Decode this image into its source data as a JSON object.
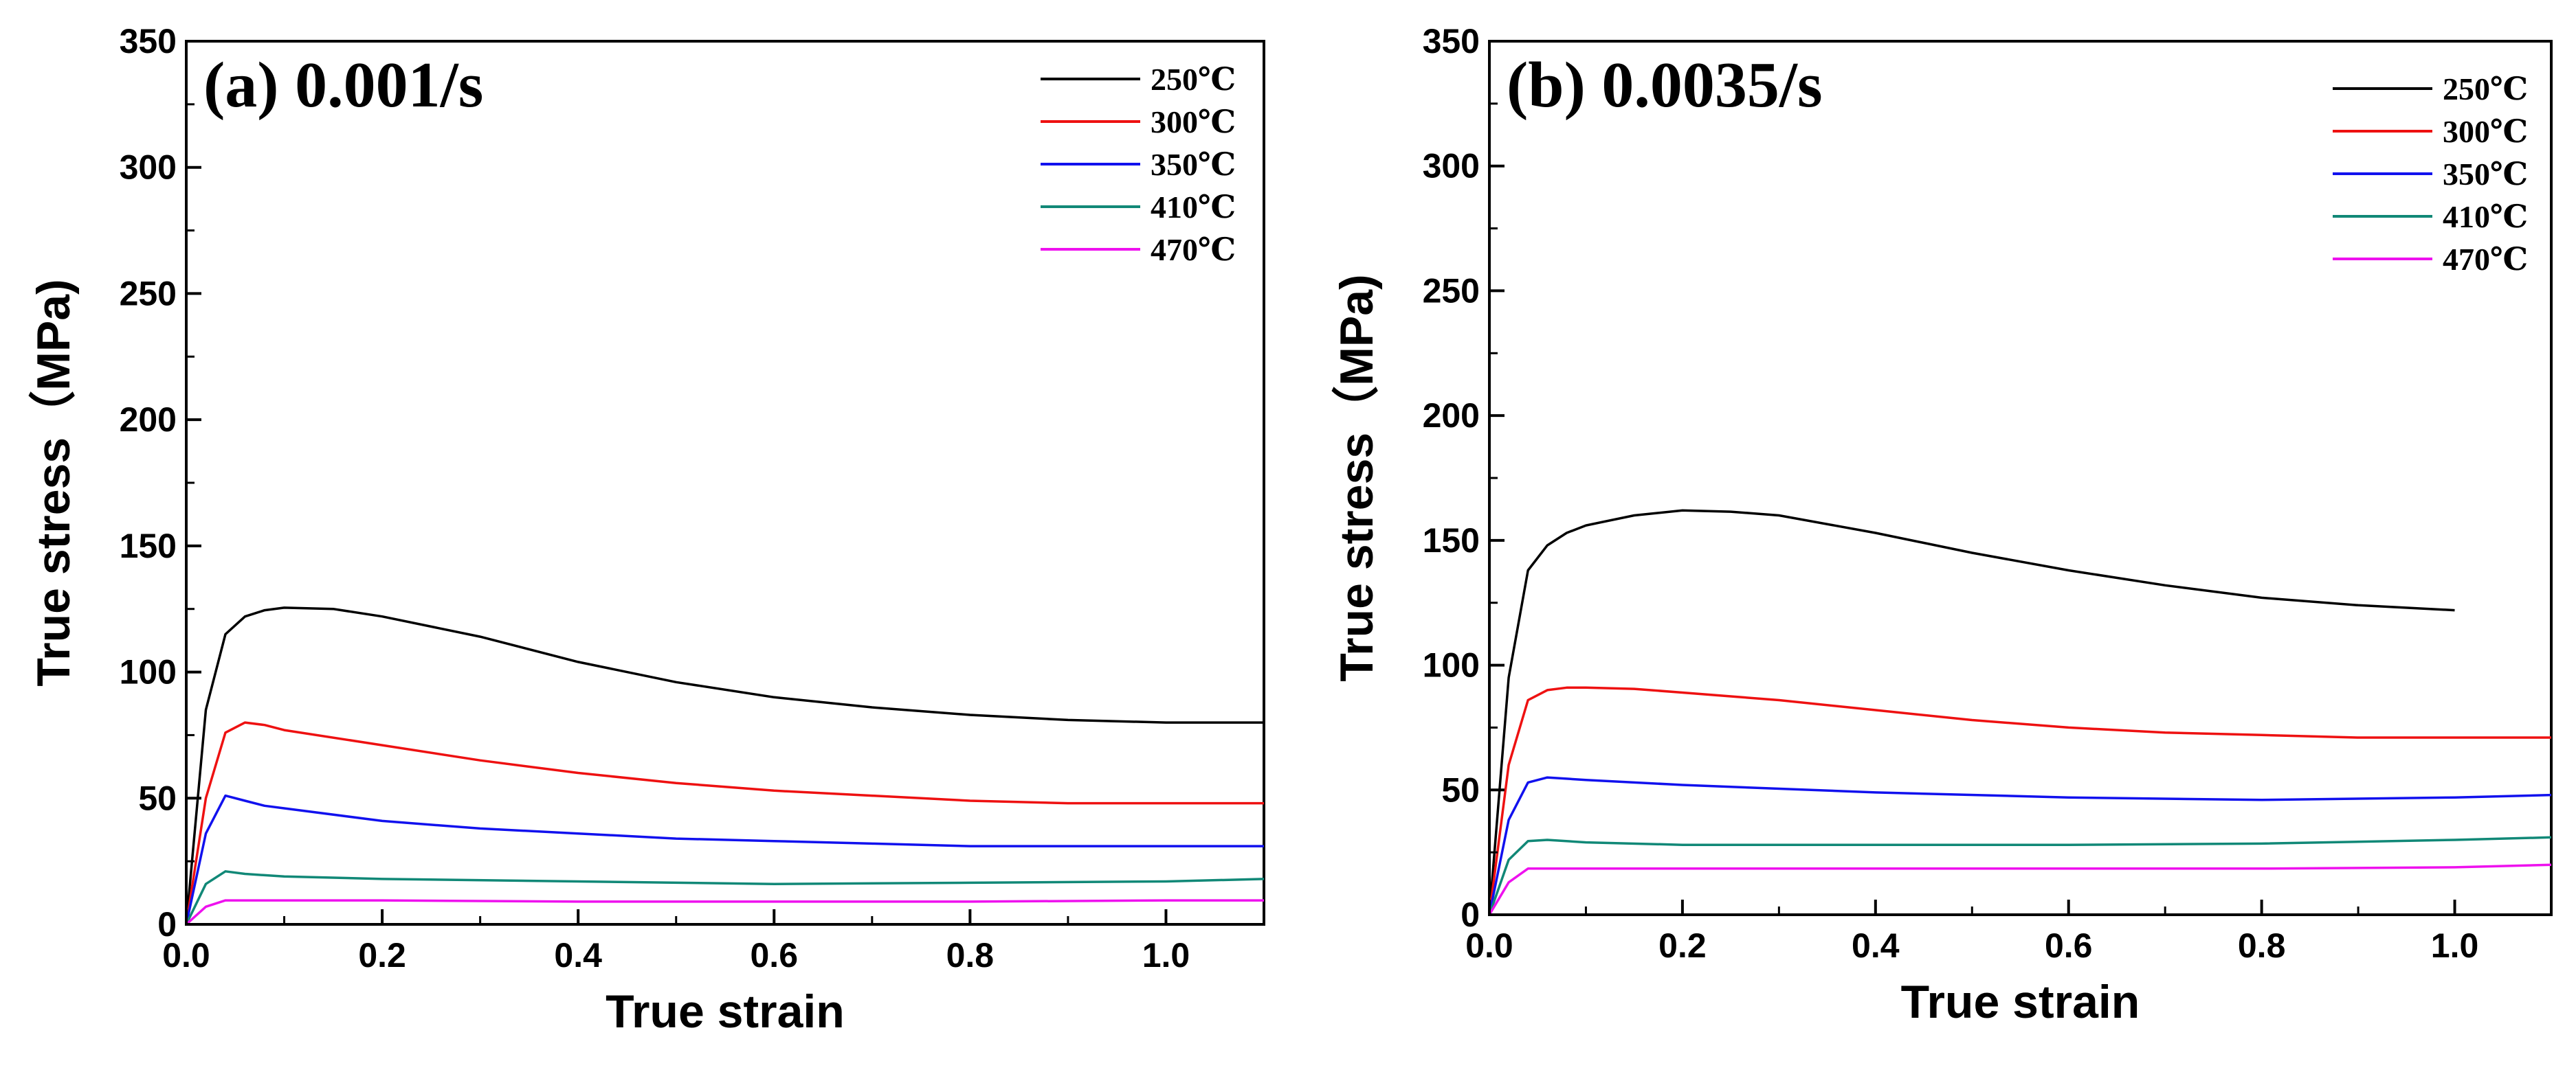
{
  "chart_data": [
    {
      "type": "line",
      "title": "(a) 0.001/s",
      "xlabel": "True strain",
      "ylabel": "True stress（MPa)",
      "xlim": [
        0,
        1.1
      ],
      "ylim": [
        0,
        350
      ],
      "xticks": [
        "0.0",
        "0.2",
        "0.4",
        "0.6",
        "0.8",
        "1.0"
      ],
      "yticks": [
        "0",
        "50",
        "100",
        "150",
        "200",
        "250",
        "300",
        "350"
      ],
      "legend_position": "top-right",
      "series": [
        {
          "name": "250℃",
          "color": "#000000",
          "x": [
            0,
            0.02,
            0.04,
            0.06,
            0.08,
            0.1,
            0.15,
            0.2,
            0.3,
            0.4,
            0.5,
            0.6,
            0.7,
            0.8,
            0.9,
            1.0,
            1.1
          ],
          "y": [
            0,
            85,
            115,
            122,
            124.5,
            125.5,
            125,
            122,
            114,
            104,
            96,
            90,
            86,
            83,
            81,
            80,
            80
          ]
        },
        {
          "name": "300℃",
          "color": "#ee1111",
          "x": [
            0,
            0.02,
            0.04,
            0.06,
            0.08,
            0.1,
            0.2,
            0.3,
            0.4,
            0.5,
            0.6,
            0.7,
            0.8,
            0.9,
            1.0,
            1.1
          ],
          "y": [
            0,
            50,
            76,
            80,
            79,
            77,
            71,
            65,
            60,
            56,
            53,
            51,
            49,
            48,
            48,
            48
          ]
        },
        {
          "name": "350℃",
          "color": "#1111ee",
          "x": [
            0,
            0.02,
            0.04,
            0.06,
            0.08,
            0.1,
            0.2,
            0.3,
            0.4,
            0.5,
            0.6,
            0.7,
            0.8,
            0.9,
            1.0,
            1.1
          ],
          "y": [
            0,
            36,
            51,
            49,
            47,
            46,
            41,
            38,
            36,
            34,
            33,
            32,
            31,
            31,
            31,
            31
          ]
        },
        {
          "name": "410℃",
          "color": "#118877",
          "x": [
            0,
            0.02,
            0.04,
            0.06,
            0.08,
            0.1,
            0.2,
            0.4,
            0.6,
            0.8,
            1.0,
            1.1
          ],
          "y": [
            0,
            16,
            21,
            20,
            19.5,
            19,
            18,
            17,
            16,
            16.5,
            17,
            18
          ]
        },
        {
          "name": "470℃",
          "color": "#ee11ee",
          "x": [
            0,
            0.02,
            0.04,
            0.06,
            0.1,
            0.2,
            0.4,
            0.6,
            0.8,
            1.0,
            1.1
          ],
          "y": [
            0,
            7,
            9.5,
            9.5,
            9.5,
            9.5,
            9,
            9,
            9,
            9.5,
            9.5
          ]
        }
      ]
    },
    {
      "type": "line",
      "title": "(b) 0.0035/s",
      "xlabel": "True strain",
      "ylabel": "True stress（MPa)",
      "xlim": [
        0,
        1.1
      ],
      "ylim": [
        0,
        350
      ],
      "xticks": [
        "0.0",
        "0.2",
        "0.4",
        "0.6",
        "0.8",
        "1.0"
      ],
      "yticks": [
        "0",
        "50",
        "100",
        "150",
        "200",
        "250",
        "300",
        "350"
      ],
      "legend_position": "top-right",
      "series": [
        {
          "name": "250℃",
          "color": "#000000",
          "x": [
            0,
            0.02,
            0.04,
            0.06,
            0.08,
            0.1,
            0.15,
            0.2,
            0.25,
            0.3,
            0.4,
            0.5,
            0.6,
            0.7,
            0.8,
            0.9,
            1.0
          ],
          "y": [
            0,
            95,
            138,
            148,
            153,
            156,
            160,
            162,
            161.5,
            160,
            153,
            145,
            138,
            132,
            127,
            124,
            122
          ]
        },
        {
          "name": "300℃",
          "color": "#ee1111",
          "x": [
            0,
            0.02,
            0.04,
            0.06,
            0.08,
            0.1,
            0.15,
            0.2,
            0.3,
            0.4,
            0.5,
            0.6,
            0.7,
            0.8,
            0.9,
            1.0,
            1.1
          ],
          "y": [
            0,
            60,
            86,
            90,
            91,
            91,
            90.5,
            89,
            86,
            82,
            78,
            75,
            73,
            72,
            71,
            71,
            71
          ]
        },
        {
          "name": "350℃",
          "color": "#1111ee",
          "x": [
            0,
            0.02,
            0.04,
            0.06,
            0.08,
            0.1,
            0.2,
            0.4,
            0.6,
            0.8,
            1.0,
            1.1
          ],
          "y": [
            0,
            38,
            53,
            55,
            54.5,
            54,
            52,
            49,
            47,
            46,
            47,
            48
          ]
        },
        {
          "name": "410℃",
          "color": "#118877",
          "x": [
            0,
            0.02,
            0.04,
            0.06,
            0.1,
            0.2,
            0.4,
            0.6,
            0.8,
            1.0,
            1.1
          ],
          "y": [
            0,
            22,
            29.5,
            30,
            29,
            28,
            28,
            28,
            28.5,
            30,
            31
          ]
        },
        {
          "name": "470℃",
          "color": "#ee11ee",
          "x": [
            0,
            0.02,
            0.04,
            0.06,
            0.1,
            0.2,
            0.4,
            0.6,
            0.8,
            1.0,
            1.1
          ],
          "y": [
            0,
            13,
            18.5,
            18.5,
            18.5,
            18.5,
            18.5,
            18.5,
            18.5,
            19,
            20
          ]
        }
      ]
    }
  ]
}
